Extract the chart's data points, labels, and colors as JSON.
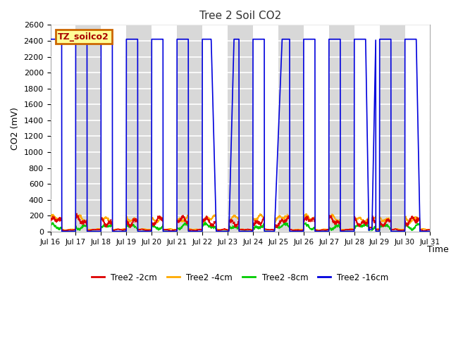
{
  "title": "Tree 2 Soil CO2",
  "ylabel": "CO2 (mV)",
  "xlabel": "Time",
  "ylim": [
    0,
    2600
  ],
  "bg_color": "#ffffff",
  "fig_bg_color": "#ffffff",
  "plot_bg_color": "#e8e8e8",
  "grid_color": "#ffffff",
  "alt_band_color": "#d8d8d8",
  "legend_label": "TZ_soilco2",
  "series": {
    "Tree2 -2cm": {
      "color": "#dd0000"
    },
    "Tree2 -4cm": {
      "color": "#ffaa00"
    },
    "Tree2 -8cm": {
      "color": "#00cc00"
    },
    "Tree2 -16cm": {
      "color": "#0000dd"
    }
  },
  "xtick_labels": [
    "Jul 16",
    "Jul 17",
    "Jul 18",
    "Jul 19",
    "Jul 20",
    "Jul 21",
    "Jul 22",
    "Jul 23",
    "Jul 24",
    "Jul 25",
    "Jul 26",
    "Jul 27",
    "Jul 28",
    "Jul 29",
    "Jul 30",
    "Jul 31"
  ],
  "ytick_values": [
    0,
    200,
    400,
    600,
    800,
    1000,
    1200,
    1400,
    1600,
    1800,
    2000,
    2200,
    2400,
    2600
  ]
}
